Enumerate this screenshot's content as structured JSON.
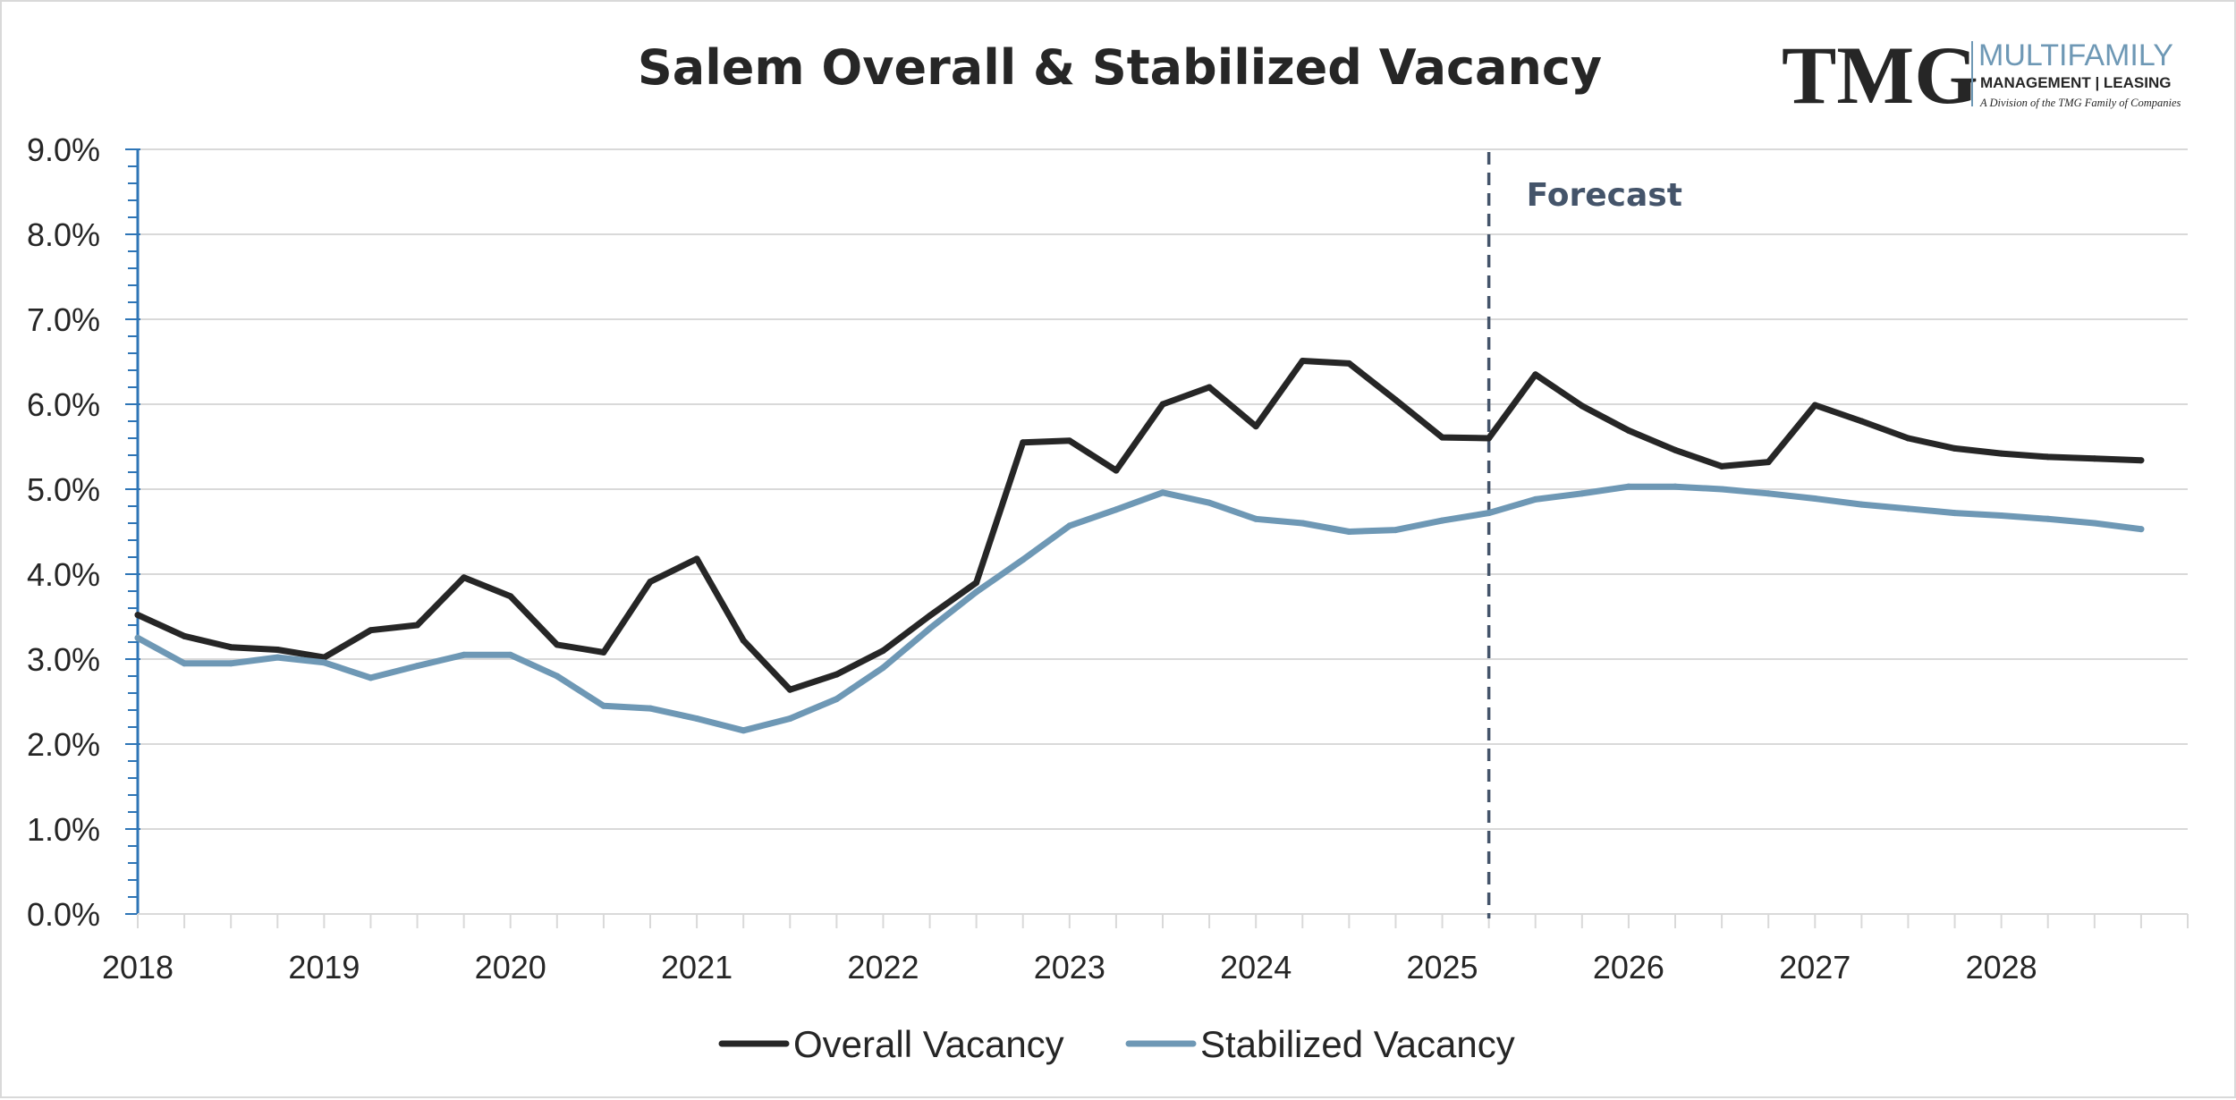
{
  "chart_data": {
    "type": "line",
    "title": "Salem Overall & Stabilized Vacancy",
    "xlabel": "",
    "ylabel": "",
    "ylim": [
      0,
      0.09
    ],
    "y_ticks": [
      "0.0%",
      "1.0%",
      "2.0%",
      "3.0%",
      "4.0%",
      "5.0%",
      "6.0%",
      "7.0%",
      "8.0%",
      "9.0%"
    ],
    "x_labels": [
      "2018",
      "2019",
      "2020",
      "2021",
      "2022",
      "2023",
      "2024",
      "2025",
      "2026",
      "2027",
      "2028"
    ],
    "x": [
      "2018Q1",
      "2018Q2",
      "2018Q3",
      "2018Q4",
      "2019Q1",
      "2019Q2",
      "2019Q3",
      "2019Q4",
      "2020Q1",
      "2020Q2",
      "2020Q3",
      "2020Q4",
      "2021Q1",
      "2021Q2",
      "2021Q3",
      "2021Q4",
      "2022Q1",
      "2022Q2",
      "2022Q3",
      "2022Q4",
      "2023Q1",
      "2023Q2",
      "2023Q3",
      "2023Q4",
      "2024Q1",
      "2024Q2",
      "2024Q3",
      "2024Q4",
      "2025Q1",
      "2025Q2",
      "2025Q3",
      "2025Q4",
      "2026Q1",
      "2026Q2",
      "2026Q3",
      "2026Q4",
      "2027Q1",
      "2027Q2",
      "2027Q3",
      "2027Q4",
      "2028Q1",
      "2028Q2",
      "2028Q3",
      "2028Q4"
    ],
    "series": [
      {
        "name": "Overall Vacancy",
        "color": "#262626",
        "values": [
          0.0352,
          0.0327,
          0.0314,
          0.0311,
          0.0302,
          0.0334,
          0.034,
          0.0396,
          0.0374,
          0.0317,
          0.0308,
          0.0391,
          0.0418,
          0.0322,
          0.0264,
          0.0282,
          0.031,
          0.0351,
          0.039,
          0.0555,
          0.0557,
          0.0522,
          0.06,
          0.062,
          0.0574,
          0.0651,
          0.0648,
          0.0605,
          0.0561,
          0.056,
          0.0635,
          0.0598,
          0.0569,
          0.0546,
          0.0527,
          0.0532,
          0.0599,
          0.058,
          0.056,
          0.0548,
          0.0542,
          0.0538,
          0.0536,
          0.0534
        ]
      },
      {
        "name": "Stabilized Vacancy",
        "color": "#6e98b5",
        "values": [
          0.0325,
          0.0295,
          0.0295,
          0.0302,
          0.0296,
          0.0278,
          0.0292,
          0.0305,
          0.0305,
          0.028,
          0.0245,
          0.0242,
          0.023,
          0.0216,
          0.023,
          0.0253,
          0.029,
          0.0336,
          0.0379,
          0.0417,
          0.0457,
          0.0476,
          0.0496,
          0.0484,
          0.0465,
          0.046,
          0.045,
          0.0452,
          0.0463,
          0.0472,
          0.0488,
          0.0495,
          0.0503,
          0.0503,
          0.05,
          0.0495,
          0.0489,
          0.0482,
          0.0477,
          0.0472,
          0.0469,
          0.0465,
          0.046,
          0.0453
        ]
      }
    ],
    "annotations": [
      {
        "text": "Forecast",
        "x": "2025Q2",
        "style": "dashed vertical line",
        "color": "#44546a"
      }
    ],
    "grid": true,
    "legend": "bottom-center"
  },
  "logo": {
    "name": "TMG",
    "line1": "MULTIFAMILY",
    "line2": "MANAGEMENT | LEASING",
    "line3": "A Division of the TMG Family of Companies"
  }
}
